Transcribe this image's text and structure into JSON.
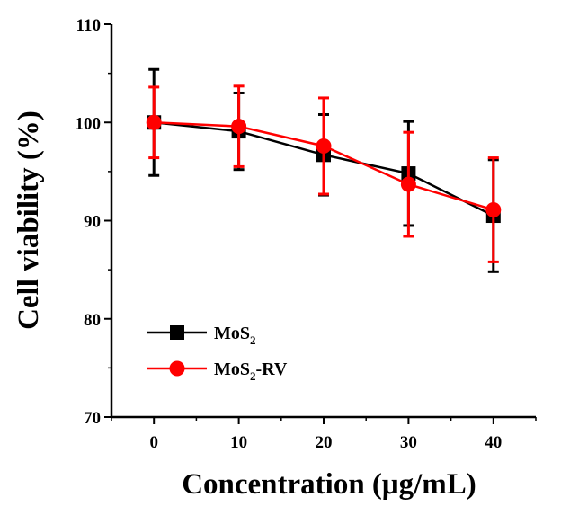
{
  "chart_data": {
    "type": "line",
    "title": "",
    "xlabel": "Concentration (μg/mL)",
    "ylabel": "Cell viability (%)",
    "x": [
      0,
      10,
      20,
      30,
      40
    ],
    "xticks": [
      "0",
      "10",
      "20",
      "30",
      "40"
    ],
    "yticks": [
      "70",
      "80",
      "90",
      "100",
      "110"
    ],
    "xlim": [
      -5,
      45
    ],
    "ylim": [
      70,
      110
    ],
    "grid": false,
    "legend_position": "bottom-left",
    "series": [
      {
        "name": "MoS2",
        "legend_main": "MoS",
        "legend_sub": "2",
        "legend_suffix": "",
        "color": "#000000",
        "marker": "square",
        "values": [
          100.0,
          99.1,
          96.7,
          94.8,
          90.5
        ],
        "errors": [
          5.4,
          3.9,
          4.1,
          5.3,
          5.7
        ]
      },
      {
        "name": "MoS2-RV",
        "legend_main": "MoS",
        "legend_sub": "2",
        "legend_suffix": "-RV",
        "color": "#ff0000",
        "marker": "circle",
        "values": [
          100.0,
          99.6,
          97.6,
          93.7,
          91.1
        ],
        "errors": [
          3.6,
          4.1,
          4.9,
          5.3,
          5.3
        ]
      }
    ]
  }
}
